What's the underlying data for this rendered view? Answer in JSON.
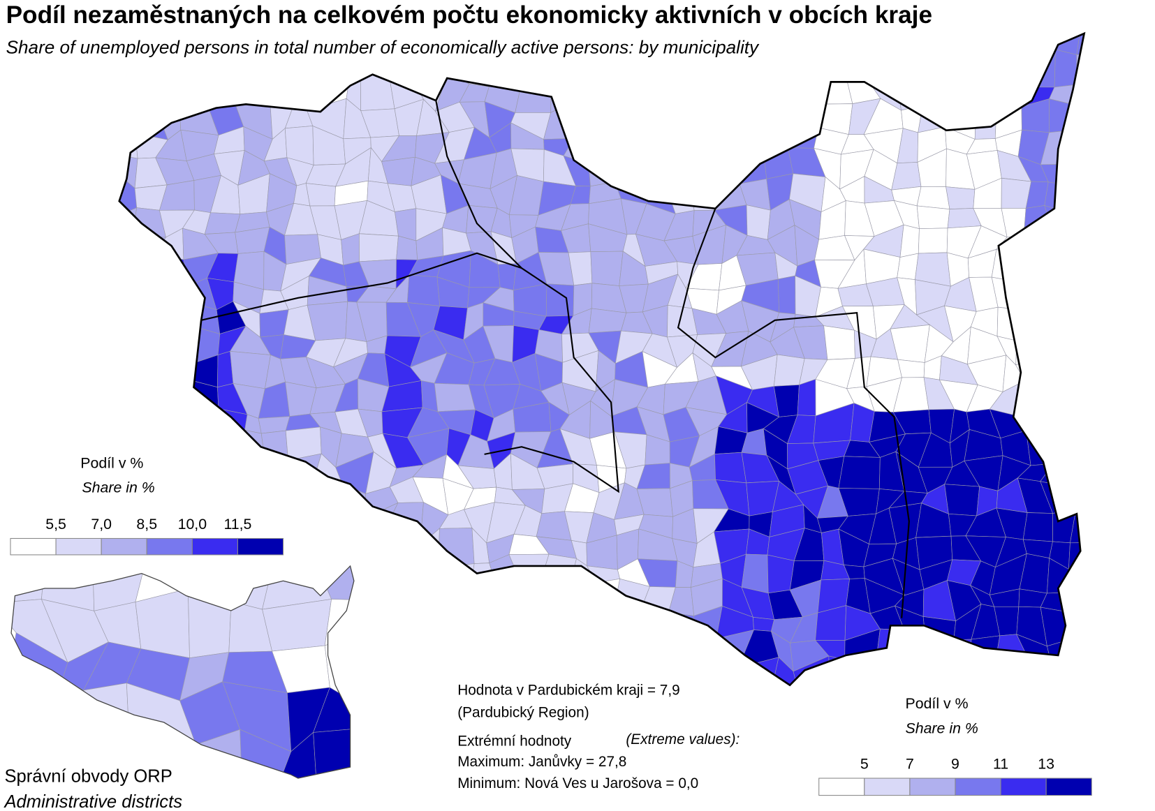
{
  "header": {
    "title": "Podíl nezaměstnaných na celkovém počtu ekonomicky aktivních v obcích kraje",
    "subtitle": "Share of unemployed persons in total number of economically active persons: by municipality"
  },
  "legend": {
    "title": "Podíl v %",
    "subtitle": "Share in %",
    "classes": [
      "#ffffff",
      "#d9d9f7",
      "#b0b0ee",
      "#7878ee",
      "#3a2cf0",
      "#0000b0"
    ],
    "ticks": [
      {
        "value": 5.5,
        "label": "5,5"
      },
      {
        "value": 7,
        "label": "7,0"
      },
      {
        "value": 8.5,
        "label": "8,5"
      },
      {
        "value": 10,
        "label": "10,0"
      },
      {
        "value": 11.5,
        "label": "11,5"
      }
    ]
  },
  "inset_legend": {
    "title": "Podíl v %",
    "subtitle": "Share in %",
    "classes": [
      "#ffffff",
      "#d9d9f7",
      "#b0b0ee",
      "#7878ee",
      "#3a2cf0",
      "#0000b0"
    ],
    "ticks": [
      5,
      7,
      9,
      11,
      13
    ]
  },
  "notes": {
    "region_value": "Hodnota v Pardubickém kraji = 7,9",
    "region_name": "(Pardubický Region)",
    "extremes_title": "Extrémní hodnoty",
    "extremes_title_en": "(Extreme values):",
    "maximum": "Maximum: Janůvky = 27,8",
    "minimum": "Minimum: Nová Ves u Jarošova = 0,0"
  },
  "inset": {
    "title": "Správní obvody  ORP",
    "subtitle": "Administrative districts"
  }
}
